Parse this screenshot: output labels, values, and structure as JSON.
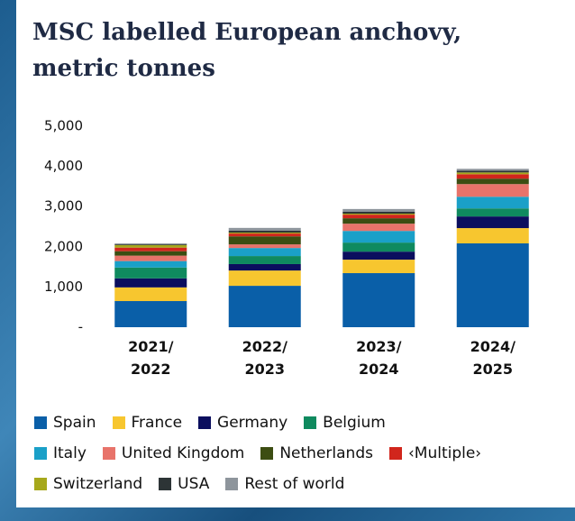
{
  "chart_data": {
    "type": "bar",
    "stacked": true,
    "title": "MSC labelled European anchovy, metric tonnes",
    "categories": [
      "2021/\n2022",
      "2022/\n2023",
      "2023/\n2024",
      "2024/\n2025"
    ],
    "ylim": [
      0,
      5000
    ],
    "yticks": [
      {
        "value": 0,
        "label": "-"
      },
      {
        "value": 1000,
        "label": "1,000"
      },
      {
        "value": 2000,
        "label": "2,000"
      },
      {
        "value": 3000,
        "label": "3,000"
      },
      {
        "value": 4000,
        "label": "4,000"
      },
      {
        "value": 5000,
        "label": "5,000"
      }
    ],
    "grid": false,
    "series": [
      {
        "name": "Spain",
        "color": "#0a5fa8",
        "values": [
          650,
          1030,
          1345,
          2085
        ]
      },
      {
        "name": "France",
        "color": "#f7c62f",
        "values": [
          340,
          380,
          335,
          380
        ]
      },
      {
        "name": "Germany",
        "color": "#0b0e5e",
        "values": [
          225,
          160,
          200,
          290
        ]
      },
      {
        "name": "Belgium",
        "color": "#0f8a5f",
        "values": [
          270,
          200,
          225,
          200
        ]
      },
      {
        "name": "Italy",
        "color": "#1aa0c8",
        "values": [
          160,
          200,
          290,
          290
        ]
      },
      {
        "name": "United Kingdom",
        "color": "#e8736a",
        "values": [
          135,
          90,
          180,
          315
        ]
      },
      {
        "name": "Netherlands",
        "color": "#3c4d12",
        "values": [
          110,
          200,
          135,
          135
        ]
      },
      {
        "name": "‹Multiple›",
        "color": "#d1261c",
        "values": [
          90,
          70,
          90,
          110
        ]
      },
      {
        "name": "Switzerland",
        "color": "#a6a81b",
        "values": [
          65,
          25,
          25,
          45
        ]
      },
      {
        "name": "USA",
        "color": "#2d3436",
        "values": [
          20,
          45,
          45,
          45
        ]
      },
      {
        "name": "Rest of world",
        "color": "#8e959c",
        "values": [
          20,
          70,
          70,
          45
        ]
      }
    ]
  }
}
